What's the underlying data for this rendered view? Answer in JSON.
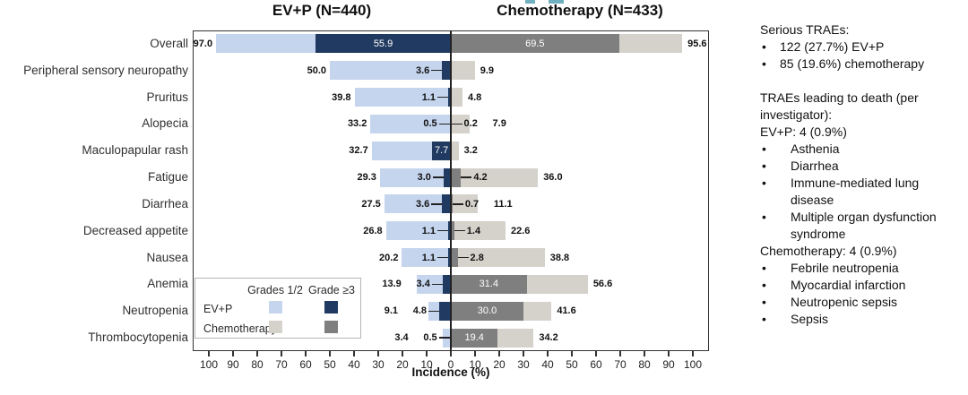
{
  "colors": {
    "evp_grades12": "#c5d5ee",
    "evp_grade3plus": "#203a61",
    "chemo_grade3plus": "#7f7f7f",
    "chemo_grades12": "#d5d2cc",
    "axis": "#333333",
    "title_artifact": "#6fafbf"
  },
  "chart_data": {
    "type": "bar",
    "variant": "diverging-stacked-horizontal",
    "left_header": "EV+P (N=440)",
    "right_header": "Chemotherapy (N=433)",
    "x_axis_label": "Incidence (%)",
    "x_tick_labels": [
      "100",
      "90",
      "80",
      "70",
      "60",
      "50",
      "40",
      "30",
      "20",
      "10",
      "0",
      "10",
      "20",
      "30",
      "40",
      "50",
      "60",
      "70",
      "80",
      "90",
      "100"
    ],
    "x_range_each_side": [
      0,
      100
    ],
    "grid": "off",
    "legend_position": "bottom-left-inside",
    "categories": [
      "Overall",
      "Peripheral sensory neuropathy",
      "Pruritus",
      "Alopecia",
      "Maculopapular rash",
      "Fatigue",
      "Diarrhea",
      "Decreased appetite",
      "Nausea",
      "Anemia",
      "Neutropenia",
      "Thrombocytopenia"
    ],
    "series": [
      {
        "name": "EV+P any grade (total)",
        "side": "left",
        "values": [
          97.0,
          50.0,
          39.8,
          33.2,
          32.7,
          29.3,
          27.5,
          26.8,
          20.2,
          13.9,
          9.1,
          3.4
        ]
      },
      {
        "name": "EV+P grade >=3",
        "side": "left",
        "values": [
          55.9,
          3.6,
          1.1,
          0.5,
          7.7,
          3.0,
          3.6,
          1.1,
          1.1,
          3.4,
          4.8,
          0.5
        ]
      },
      {
        "name": "Chemotherapy grade >=3",
        "side": "right",
        "values": [
          69.5,
          null,
          null,
          0.2,
          null,
          4.2,
          0.7,
          1.4,
          2.8,
          31.4,
          30.0,
          19.4
        ]
      },
      {
        "name": "Chemotherapy any grade (total)",
        "side": "right",
        "values": [
          95.6,
          9.9,
          4.8,
          7.9,
          3.2,
          36.0,
          11.1,
          22.6,
          38.8,
          56.6,
          41.6,
          34.2
        ]
      }
    ],
    "legend": {
      "col_headers": [
        "Grades 1/2",
        "Grade ≥3"
      ],
      "row_labels": [
        "EV+P",
        "Chemotherapy"
      ]
    }
  },
  "annotations": {
    "serious": {
      "heading": "Serious TRAEs:",
      "bullets": [
        "122 (27.7%) EV+P",
        "85 (19.6%) chemotherapy"
      ]
    },
    "deaths": {
      "heading": "TRAEs leading to death (per investigator):",
      "groups": [
        {
          "label": "EV+P: 4 (0.9%)",
          "bullets": [
            "Asthenia",
            "Diarrhea",
            "Immune-mediated lung disease",
            "Multiple organ dysfunction syndrome"
          ]
        },
        {
          "label": "Chemotherapy: 4 (0.9%)",
          "bullets": [
            "Febrile neutropenia",
            "Myocardial infarction",
            "Neutropenic sepsis",
            "Sepsis"
          ]
        }
      ]
    }
  }
}
